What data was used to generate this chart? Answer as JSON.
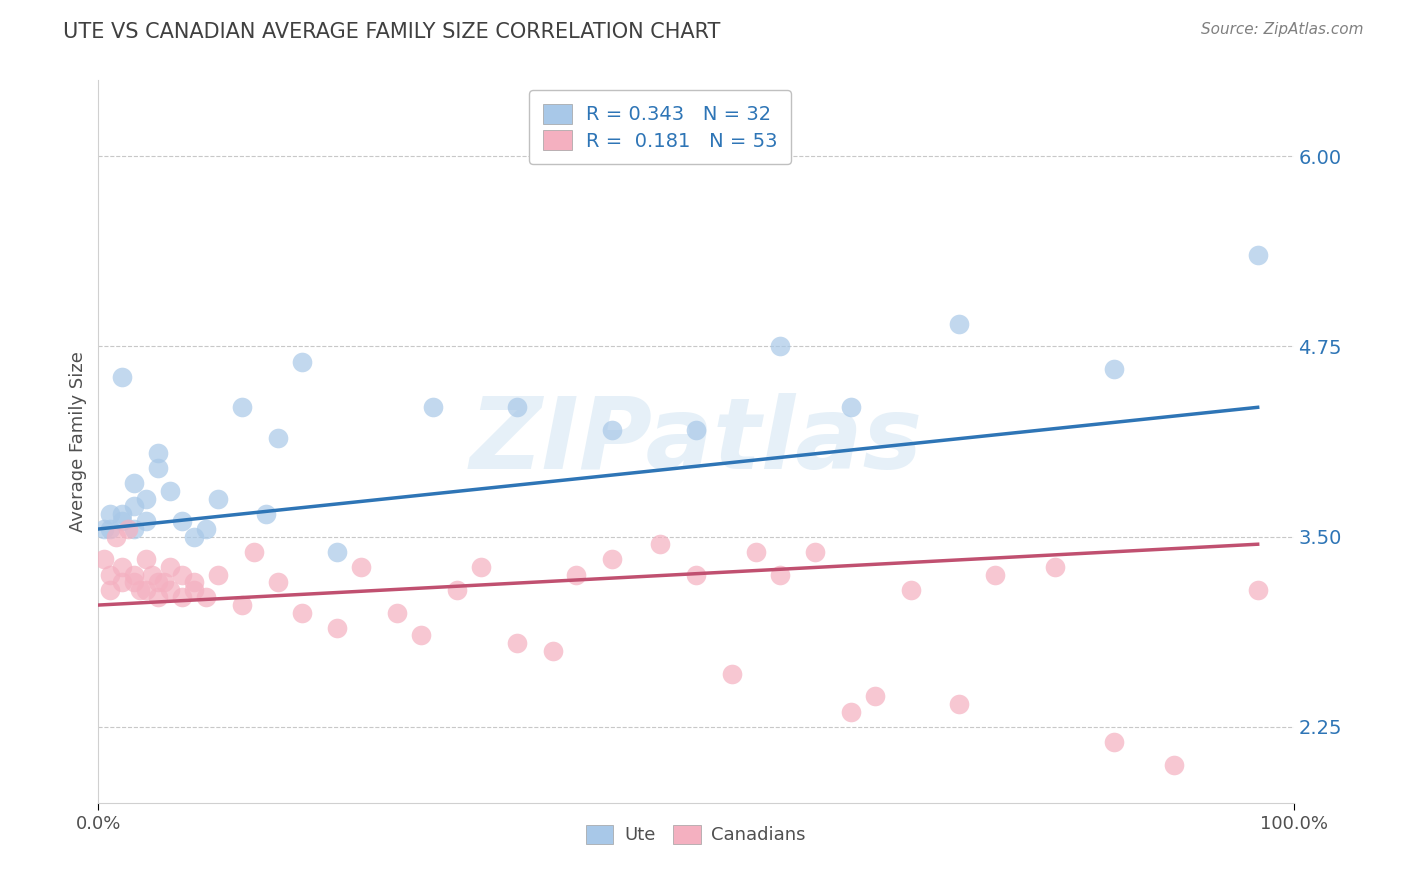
{
  "title": "UTE VS CANADIAN AVERAGE FAMILY SIZE CORRELATION CHART",
  "source_text": "Source: ZipAtlas.com",
  "ylabel": "Average Family Size",
  "xlim": [
    0,
    1
  ],
  "ylim": [
    1.75,
    6.5
  ],
  "yticks": [
    2.25,
    3.5,
    4.75,
    6.0
  ],
  "ytick_labels": [
    "2.25",
    "3.50",
    "4.75",
    "6.00"
  ],
  "xtick_positions": [
    0.0,
    1.0
  ],
  "xtick_labels": [
    "0.0%",
    "100.0%"
  ],
  "watermark": "ZIPatlas",
  "legend_line1": "R = 0.343   N = 32",
  "legend_line2": "R =  0.181   N = 53",
  "ute_scatter_x": [
    0.005,
    0.01,
    0.01,
    0.02,
    0.02,
    0.02,
    0.03,
    0.03,
    0.03,
    0.04,
    0.04,
    0.05,
    0.05,
    0.06,
    0.07,
    0.08,
    0.09,
    0.1,
    0.12,
    0.14,
    0.15,
    0.17,
    0.2,
    0.28,
    0.35,
    0.43,
    0.5,
    0.57,
    0.63,
    0.72,
    0.85,
    0.97
  ],
  "ute_scatter_y": [
    3.55,
    3.55,
    3.65,
    3.65,
    3.6,
    4.55,
    3.55,
    3.7,
    3.85,
    3.6,
    3.75,
    3.95,
    4.05,
    3.8,
    3.6,
    3.5,
    3.55,
    3.75,
    4.35,
    3.65,
    4.15,
    4.65,
    3.4,
    4.35,
    4.35,
    4.2,
    4.2,
    4.75,
    4.35,
    4.9,
    4.6,
    5.35
  ],
  "can_scatter_x": [
    0.005,
    0.01,
    0.01,
    0.015,
    0.02,
    0.02,
    0.025,
    0.03,
    0.03,
    0.035,
    0.04,
    0.04,
    0.045,
    0.05,
    0.05,
    0.055,
    0.06,
    0.06,
    0.07,
    0.07,
    0.08,
    0.08,
    0.09,
    0.1,
    0.12,
    0.13,
    0.15,
    0.17,
    0.2,
    0.22,
    0.25,
    0.27,
    0.3,
    0.32,
    0.35,
    0.38,
    0.4,
    0.43,
    0.47,
    0.5,
    0.53,
    0.55,
    0.57,
    0.6,
    0.63,
    0.65,
    0.68,
    0.72,
    0.75,
    0.8,
    0.85,
    0.9,
    0.97
  ],
  "can_scatter_y": [
    3.35,
    3.25,
    3.15,
    3.5,
    3.3,
    3.2,
    3.55,
    3.25,
    3.2,
    3.15,
    3.35,
    3.15,
    3.25,
    3.2,
    3.1,
    3.2,
    3.3,
    3.15,
    3.25,
    3.1,
    3.2,
    3.15,
    3.1,
    3.25,
    3.05,
    3.4,
    3.2,
    3.0,
    2.9,
    3.3,
    3.0,
    2.85,
    3.15,
    3.3,
    2.8,
    2.75,
    3.25,
    3.35,
    3.45,
    3.25,
    2.6,
    3.4,
    3.25,
    3.4,
    2.35,
    2.45,
    3.15,
    2.4,
    3.25,
    3.3,
    2.15,
    2.0,
    3.15
  ],
  "ute_line_x": [
    0.0,
    0.97
  ],
  "ute_line_y": [
    3.55,
    4.35
  ],
  "can_line_x": [
    0.0,
    0.97
  ],
  "can_line_y": [
    3.05,
    3.45
  ],
  "ute_color": "#a8c8e8",
  "can_color": "#f4b0c0",
  "ute_line_color": "#2e75b6",
  "can_line_color": "#c05070",
  "bg_color": "#ffffff",
  "grid_color": "#c8c8c8",
  "title_color": "#404040",
  "ylabel_color": "#505050",
  "source_color": "#808080",
  "yaxis_color": "#2e75b6"
}
